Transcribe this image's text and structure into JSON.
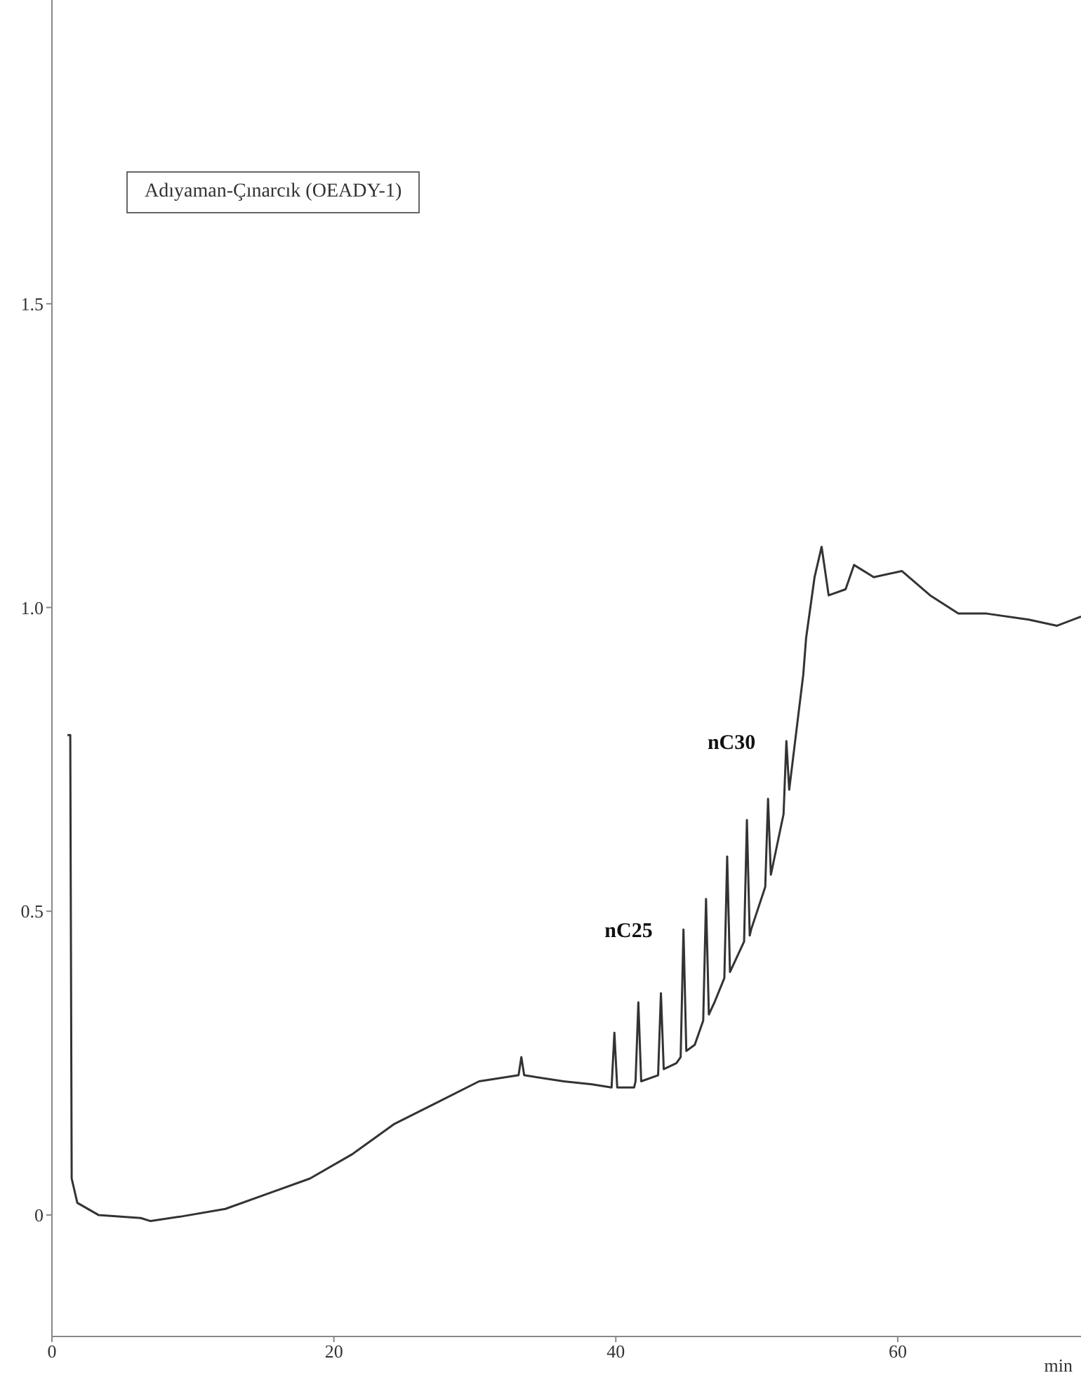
{
  "chart_data": {
    "type": "line",
    "title": "Adıyaman-Çınarcık (OEADY-1)",
    "xlabel": "min",
    "x": [
      1.1,
      1.3,
      1.4,
      1.8,
      3.3,
      6.3,
      7.0,
      9.3,
      12.3,
      15.3,
      18.3,
      21.3,
      24.3,
      27.3,
      30.3,
      33.1,
      33.3,
      33.5,
      36.3,
      38.3,
      39.7,
      39.9,
      40.1,
      41.3,
      41.4,
      41.6,
      41.8,
      43.0,
      43.2,
      43.4,
      44.3,
      44.6,
      44.8,
      45.0,
      45.6,
      46.2,
      46.4,
      46.6,
      47.0,
      47.7,
      47.9,
      48.1,
      48.3,
      49.1,
      49.3,
      49.5,
      49.6,
      50.6,
      50.8,
      51.0,
      51.9,
      52.1,
      52.3,
      53.3,
      53.5,
      54.1,
      54.6,
      55.1,
      56.3,
      56.9,
      58.3,
      60.3,
      62.3,
      64.3,
      66.3,
      69.3,
      71.3,
      73.0
    ],
    "series": [
      {
        "color": "#333333",
        "values": [
          0.79,
          0.79,
          0.06,
          0.02,
          0,
          -0.005,
          -0.01,
          -0.002,
          0.01,
          0.035,
          0.06,
          0.1,
          0.15,
          0.185,
          0.22,
          0.23,
          0.26,
          0.23,
          0.22,
          0.215,
          0.21,
          0.3,
          0.21,
          0.21,
          0.22,
          0.35,
          0.22,
          0.23,
          0.365,
          0.24,
          0.25,
          0.26,
          0.47,
          0.27,
          0.28,
          0.32,
          0.52,
          0.33,
          0.35,
          0.39,
          0.59,
          0.4,
          0.41,
          0.45,
          0.65,
          0.46,
          0.47,
          0.54,
          0.685,
          0.56,
          0.66,
          0.78,
          0.7,
          0.89,
          0.95,
          1.05,
          1.1,
          1.02,
          1.03,
          1.07,
          1.05,
          1.06,
          1.02,
          0.99,
          0.99,
          0.98,
          0.97,
          0.985
        ]
      }
    ],
    "xlim": [
      0,
      73
    ],
    "xticks": [
      0,
      20,
      40,
      60
    ],
    "ylim": [
      -0.2,
      2.0
    ],
    "yticks": [
      0,
      {
        "value": 0.5,
        "label": "0.5"
      },
      {
        "value": 1,
        "label": "1.0"
      },
      {
        "value": 1.5,
        "label": "1.5"
      }
    ],
    "grid": false,
    "legend": false,
    "marker": "none",
    "line_style": "solid",
    "annotations": [
      {
        "text": "nC25",
        "x": 44.8,
        "y": 0.47
      },
      {
        "text": "nC30",
        "x": 52.1,
        "y": 0.78
      }
    ]
  }
}
